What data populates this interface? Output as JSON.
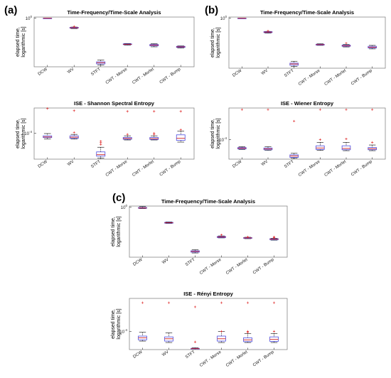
{
  "panels": [
    {
      "label": "(a)"
    },
    {
      "label": "(b)"
    },
    {
      "label": "(c)"
    }
  ],
  "chart_data": [
    {
      "panel": "(a)",
      "type": "box",
      "title": "Time-Frequency/Time-Scale Analysis",
      "xlabel": "",
      "ylabel": "elapsed time, logarithmic [s]",
      "yscale": "log",
      "ytick_labels": [
        "10^0"
      ],
      "ytick_values": [
        1
      ],
      "ylim": [
        2e-05,
        1.3
      ],
      "categories": [
        "DCW",
        "WV",
        "STFT",
        "CWT - Morse",
        "CWT - Morlet",
        "CWT - Bump"
      ],
      "boxes": [
        {
          "whislo": 0.95,
          "q1": 0.97,
          "med": 1.0,
          "q3": 1.03,
          "whishi": 1.05,
          "outliers": []
        },
        {
          "whislo": 0.1,
          "q1": 0.11,
          "med": 0.12,
          "q3": 0.13,
          "whishi": 0.14,
          "outliers": [
            0.16
          ]
        },
        {
          "whislo": 3e-05,
          "q1": 3.8e-05,
          "med": 5e-05,
          "q3": 6e-05,
          "whishi": 9e-05,
          "outliers": []
        },
        {
          "whislo": 0.0025,
          "q1": 0.0028,
          "med": 0.003,
          "q3": 0.0033,
          "whishi": 0.0036,
          "outliers": []
        },
        {
          "whislo": 0.0017,
          "q1": 0.0021,
          "med": 0.0025,
          "q3": 0.0029,
          "whishi": 0.0034,
          "outliers": []
        },
        {
          "whislo": 0.0013,
          "q1": 0.0015,
          "med": 0.0017,
          "q3": 0.0019,
          "whishi": 0.0021,
          "outliers": []
        }
      ]
    },
    {
      "panel": "(a)",
      "type": "box",
      "title": "ISE - Shannon Spectral Entropy",
      "xlabel": "",
      "ylabel": "elapsed time, logarithmic [s]",
      "yscale": "log",
      "ytick_labels": [
        "10^-4"
      ],
      "ytick_values": [
        0.0001
      ],
      "ylim": [
        3e-06,
        0.003
      ],
      "categories": [
        "DCW",
        "WV",
        "STFT",
        "CWT - Morse",
        "CWT - Morlet",
        "CWT - Bump"
      ],
      "boxes": [
        {
          "whislo": 4.5e-05,
          "q1": 5.5e-05,
          "med": 6e-05,
          "q3": 7e-05,
          "whishi": 9.5e-05,
          "outliers": [
            0.0028
          ]
        },
        {
          "whislo": 4.5e-05,
          "q1": 5e-05,
          "med": 5.8e-05,
          "q3": 7e-05,
          "whishi": 8.5e-05,
          "outliers": [
            0.0021,
            0.00011
          ]
        },
        {
          "whislo": 3.5e-06,
          "q1": 4.5e-06,
          "med": 5.5e-06,
          "q3": 8e-06,
          "whishi": 1.5e-05,
          "outliers": [
            2.2e-05,
            2.8e-05,
            3.4e-05
          ]
        },
        {
          "whislo": 4e-05,
          "q1": 4.4e-05,
          "med": 4.9e-05,
          "q3": 5.6e-05,
          "whishi": 7e-05,
          "outliers": [
            0.0019,
            8.5e-05
          ]
        },
        {
          "whislo": 4e-05,
          "q1": 4.3e-05,
          "med": 4.8e-05,
          "q3": 5.6e-05,
          "whishi": 7e-05,
          "outliers": [
            0.0019,
            8.5e-05,
            0.0001
          ]
        },
        {
          "whislo": 3e-05,
          "q1": 3.8e-05,
          "med": 5e-05,
          "q3": 8e-05,
          "whishi": 0.00013,
          "outliers": [
            0.0019,
            0.00016
          ]
        }
      ]
    },
    {
      "panel": "(b)",
      "type": "box",
      "title": "Time-Frequency/Time-Scale Analysis",
      "xlabel": "",
      "ylabel": "elapsed time, logarithmic [s]",
      "yscale": "log",
      "ytick_labels": [
        "10^0"
      ],
      "ytick_values": [
        1
      ],
      "ylim": [
        2e-05,
        1.3
      ],
      "categories": [
        "DCW",
        "WV",
        "STFT",
        "CWT - Morse",
        "CWT - Morlet",
        "CWT - Bump"
      ],
      "boxes": [
        {
          "whislo": 0.95,
          "q1": 0.97,
          "med": 1.0,
          "q3": 1.03,
          "whishi": 1.05,
          "outliers": []
        },
        {
          "whislo": 0.04,
          "q1": 0.045,
          "med": 0.05,
          "q3": 0.055,
          "whishi": 0.058,
          "outliers": [
            0.065
          ]
        },
        {
          "whislo": 3e-05,
          "q1": 3.8e-05,
          "med": 5e-05,
          "q3": 6e-05,
          "whishi": 9e-05,
          "outliers": []
        },
        {
          "whislo": 0.0028,
          "q1": 0.003,
          "med": 0.0033,
          "q3": 0.0036,
          "whishi": 0.004,
          "outliers": []
        },
        {
          "whislo": 0.002,
          "q1": 0.0023,
          "med": 0.0026,
          "q3": 0.003,
          "whishi": 0.0035,
          "outliers": [
            0.0045
          ]
        },
        {
          "whislo": 0.0013,
          "q1": 0.0016,
          "med": 0.0019,
          "q3": 0.0023,
          "whishi": 0.0028,
          "outliers": []
        }
      ]
    },
    {
      "panel": "(b)",
      "type": "box",
      "title": "ISE - Wiener Entropy",
      "xlabel": "",
      "ylabel": "elapsed time, logarithmic [s]",
      "yscale": "log",
      "ytick_labels": [
        "10^-4"
      ],
      "ytick_values": [
        0.0001
      ],
      "ylim": [
        8e-06,
        0.006
      ],
      "categories": [
        "DCW",
        "WV",
        "STFT",
        "CWT - Morse",
        "CWT - Morlet",
        "CWT - Bump"
      ],
      "boxes": [
        {
          "whislo": 2.8e-05,
          "q1": 3e-05,
          "med": 3.3e-05,
          "q3": 3.6e-05,
          "whishi": 4e-05,
          "outliers": [
            0.0049
          ]
        },
        {
          "whislo": 2.5e-05,
          "q1": 2.7e-05,
          "med": 3e-05,
          "q3": 3.4e-05,
          "whishi": 4e-05,
          "outliers": [
            0.0049
          ]
        },
        {
          "whislo": 9e-06,
          "q1": 1e-05,
          "med": 1.2e-05,
          "q3": 1.4e-05,
          "whishi": 1.7e-05,
          "outliers": [
            0.0011
          ]
        },
        {
          "whislo": 2.5e-05,
          "q1": 2.8e-05,
          "med": 3.4e-05,
          "q3": 4.5e-05,
          "whishi": 7e-05,
          "outliers": [
            0.0049,
            0.0001
          ]
        },
        {
          "whislo": 2.4e-05,
          "q1": 2.7e-05,
          "med": 3.2e-05,
          "q3": 4.5e-05,
          "whishi": 7e-05,
          "outliers": [
            0.0049,
            0.00011
          ]
        },
        {
          "whislo": 2.4e-05,
          "q1": 2.7e-05,
          "med": 3.1e-05,
          "q3": 3.6e-05,
          "whishi": 5e-05,
          "outliers": [
            0.0049,
            7e-05
          ]
        }
      ]
    },
    {
      "panel": "(c)",
      "type": "box",
      "title": "Time-Frequency/Time-Scale Analysis",
      "xlabel": "",
      "ylabel": "elapsed time, logarithmic [s]",
      "yscale": "log",
      "ytick_labels": [
        "10^0"
      ],
      "ytick_values": [
        1
      ],
      "ylim": [
        2e-05,
        1.3
      ],
      "categories": [
        "DCW",
        "WV",
        "STFT",
        "CWT - Morse",
        "CWT - Morlet",
        "CWT - Bump"
      ],
      "boxes": [
        {
          "whislo": 0.75,
          "q1": 0.8,
          "med": 0.85,
          "q3": 0.95,
          "whishi": 1.15,
          "outliers": []
        },
        {
          "whislo": 0.03,
          "q1": 0.032,
          "med": 0.035,
          "q3": 0.038,
          "whishi": 0.042,
          "outliers": []
        },
        {
          "whislo": 5e-05,
          "q1": 6e-05,
          "med": 7e-05,
          "q3": 8e-05,
          "whishi": 0.0001,
          "outliers": []
        },
        {
          "whislo": 0.0013,
          "q1": 0.0014,
          "med": 0.0016,
          "q3": 0.0018,
          "whishi": 0.002,
          "outliers": [
            0.0025
          ]
        },
        {
          "whislo": 0.0011,
          "q1": 0.0012,
          "med": 0.0013,
          "q3": 0.0014,
          "whishi": 0.0015,
          "outliers": [
            0.0016
          ]
        },
        {
          "whislo": 0.0008,
          "q1": 0.0009,
          "med": 0.001,
          "q3": 0.0011,
          "whishi": 0.0012,
          "outliers": [
            0.0014,
            0.0016
          ]
        }
      ]
    },
    {
      "panel": "(c)",
      "type": "box",
      "title": "ISE - Rényi Entropy",
      "xlabel": "",
      "ylabel": "elapsed time, logarithmic [s]",
      "yscale": "log",
      "ytick_labels": [
        "10^-4"
      ],
      "ytick_values": [
        0.0001
      ],
      "ylim": [
        1.4e-05,
        0.0035
      ],
      "categories": [
        "DCW",
        "WV",
        "STFT",
        "CWT - Morse",
        "CWT - Morlet",
        "CWT - Bump"
      ],
      "boxes": [
        {
          "whislo": 3.5e-05,
          "q1": 4e-05,
          "med": 5e-05,
          "q3": 6e-05,
          "whishi": 9e-05,
          "outliers": [
            0.0022
          ]
        },
        {
          "whislo": 3e-05,
          "q1": 3.5e-05,
          "med": 4.5e-05,
          "q3": 5.5e-05,
          "whishi": 8.5e-05,
          "outliers": [
            0.0022
          ]
        },
        {
          "whislo": 1.5e-05,
          "q1": 1.5e-05,
          "med": 1.55e-05,
          "q3": 1.6e-05,
          "whishi": 1.7e-05,
          "outliers": [
            0.0014,
            3.2e-05
          ]
        },
        {
          "whislo": 3e-05,
          "q1": 3.5e-05,
          "med": 4.5e-05,
          "q3": 6e-05,
          "whishi": 0.0001,
          "outliers": [
            0.0022,
            0.0001
          ]
        },
        {
          "whislo": 3e-05,
          "q1": 3.3e-05,
          "med": 4e-05,
          "q3": 5e-05,
          "whishi": 8e-05,
          "outliers": [
            0.0022,
            9e-05,
            0.0001
          ]
        },
        {
          "whislo": 3e-05,
          "q1": 3.4e-05,
          "med": 4.2e-05,
          "q3": 5.5e-05,
          "whishi": 8e-05,
          "outliers": [
            0.0022,
            0.0001
          ]
        }
      ]
    }
  ],
  "colors": {
    "box": "#4a4ae0",
    "median": "#d02020",
    "outlier": "#e03030",
    "whisker": "#000000",
    "axis": "#000000"
  }
}
